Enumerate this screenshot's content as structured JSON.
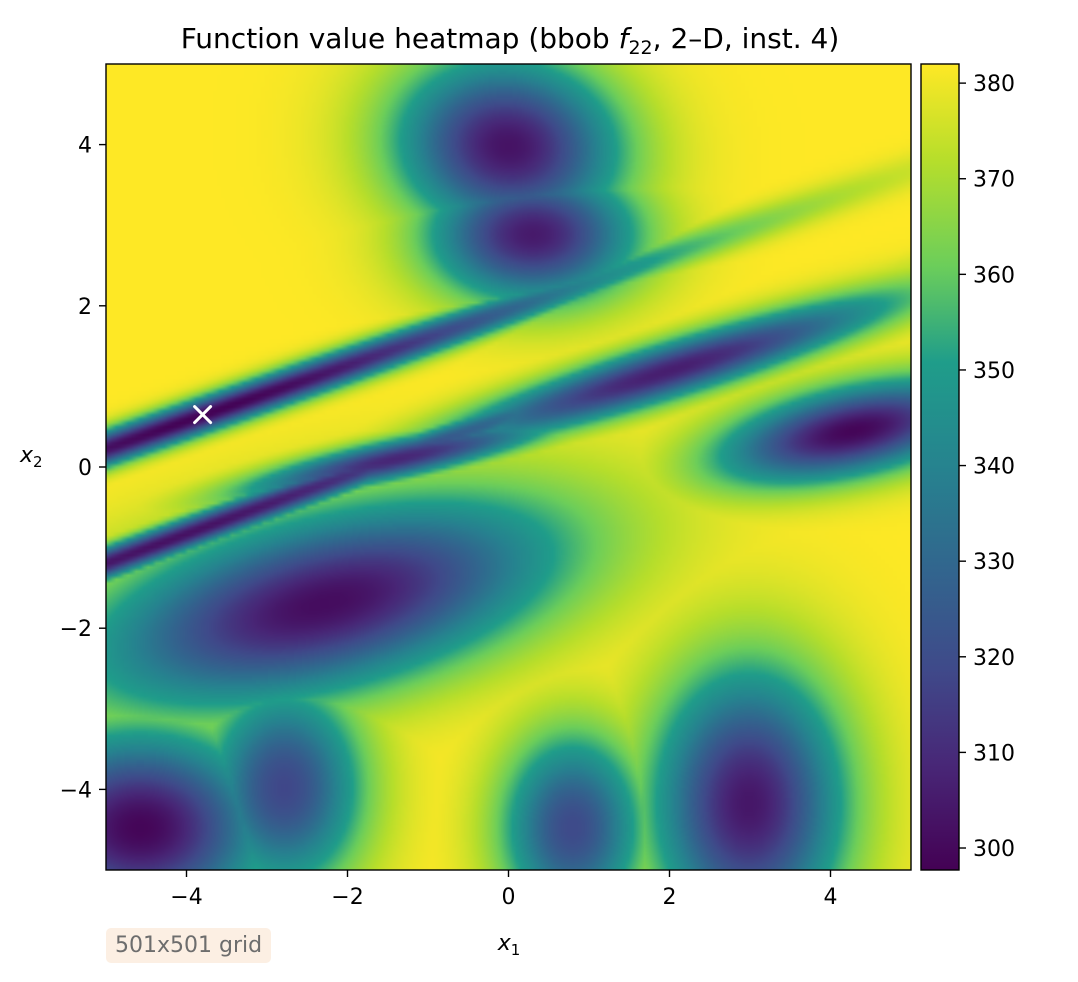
{
  "chart_data": {
    "type": "heatmap",
    "title": "Function value heatmap (bbob f22, 2–D, inst. 4)",
    "title_parts": {
      "pre": "Function value heatmap (bbob ",
      "f": "f",
      "sub": "22",
      "post": ", 2–D, inst. 4)"
    },
    "xlabel": "x1",
    "xlabel_parts": {
      "var": "x",
      "sub": "1"
    },
    "ylabel": "x2",
    "ylabel_parts": {
      "var": "x",
      "sub": "2"
    },
    "xlim": [
      -5,
      5
    ],
    "ylim": [
      -5,
      5
    ],
    "xticks": [
      -4,
      -2,
      0,
      2,
      4
    ],
    "yticks": [
      -4,
      -2,
      0,
      2,
      4
    ],
    "xtick_labels": [
      "−4",
      "−2",
      "0",
      "2",
      "4"
    ],
    "ytick_labels": [
      "−4",
      "−2",
      "0",
      "2",
      "4"
    ],
    "colormap": "viridis",
    "colorbar": {
      "range": [
        297.7,
        382.0
      ],
      "ticks": [
        300,
        310,
        320,
        330,
        340,
        350,
        360,
        370,
        380
      ],
      "tick_labels": [
        "300",
        "310",
        "320",
        "330",
        "340",
        "350",
        "360",
        "370",
        "380"
      ]
    },
    "grid": false,
    "optimum_marker": {
      "x": -3.8,
      "y": 0.65,
      "symbol": "×",
      "color": "#ffffff"
    },
    "basins": [
      {
        "cx": -3.8,
        "cy": 0.65,
        "value": 297.7,
        "sx": 6.0,
        "sy": 0.22,
        "angle_deg": 19
      },
      {
        "cx": 4.3,
        "cy": 0.45,
        "value": 299,
        "sx": 1.7,
        "sy": 0.55,
        "angle_deg": 12
      },
      {
        "cx": -4.6,
        "cy": -4.5,
        "value": 299,
        "sx": 1.6,
        "sy": 1.2,
        "angle_deg": 0
      },
      {
        "cx": -2.3,
        "cy": -1.7,
        "value": 301,
        "sx": 3.0,
        "sy": 1.1,
        "angle_deg": 14
      },
      {
        "cx": 0.0,
        "cy": 4.0,
        "value": 303,
        "sx": 1.4,
        "sy": 1.1,
        "angle_deg": -8
      },
      {
        "cx": 0.3,
        "cy": 2.9,
        "value": 305,
        "sx": 1.3,
        "sy": 0.85,
        "angle_deg": 0
      },
      {
        "cx": -4.2,
        "cy": -0.9,
        "value": 302,
        "sx": 6.5,
        "sy": 0.2,
        "angle_deg": 20
      },
      {
        "cx": 3.0,
        "cy": -4.2,
        "value": 304,
        "sx": 1.2,
        "sy": 1.7,
        "angle_deg": 0
      },
      {
        "cx": 2.0,
        "cy": 1.2,
        "value": 306,
        "sx": 3.0,
        "sy": 0.35,
        "angle_deg": 17
      },
      {
        "cx": -1.4,
        "cy": 0.1,
        "value": 308,
        "sx": 2.0,
        "sy": 0.25,
        "angle_deg": 12
      },
      {
        "cx": -2.8,
        "cy": -4.0,
        "value": 318,
        "sx": 1.0,
        "sy": 1.3,
        "angle_deg": 0
      },
      {
        "cx": 0.8,
        "cy": -4.5,
        "value": 319,
        "sx": 0.9,
        "sy": 1.2,
        "angle_deg": 0
      }
    ]
  },
  "annotation": {
    "text": "501x501 grid"
  }
}
